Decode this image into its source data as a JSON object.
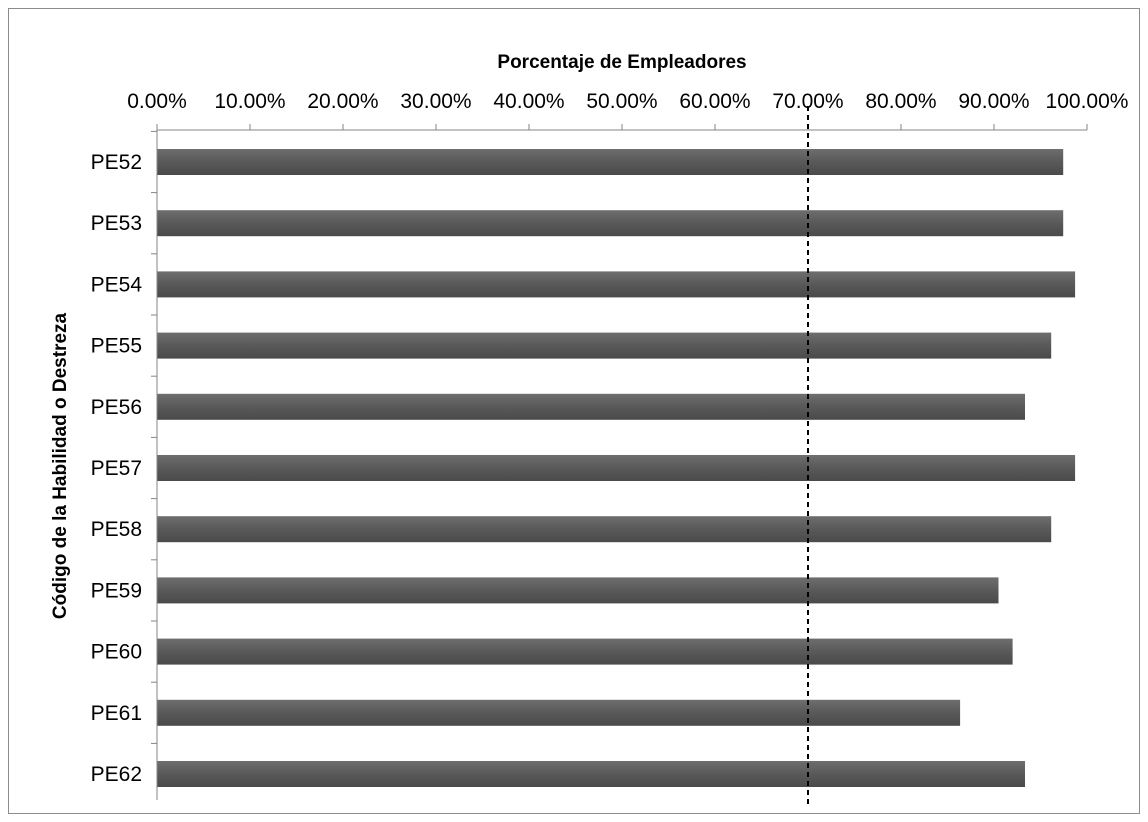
{
  "chart_data": {
    "type": "bar",
    "orientation": "horizontal",
    "categories": [
      "PE52",
      "PE53",
      "PE54",
      "PE55",
      "PE56",
      "PE57",
      "PE58",
      "PE59",
      "PE60",
      "PE61",
      "PE62"
    ],
    "values": [
      0.9744,
      0.9744,
      0.9872,
      0.9615,
      0.9333,
      0.9872,
      0.9615,
      0.9048,
      0.92,
      0.8636,
      0.9333
    ],
    "xlabel": "Porcentaje de Empleadores",
    "ylabel": "Código de la Habilidad o Destreza",
    "xlim": [
      0,
      1.0
    ],
    "x_ticks": [
      "0.00%",
      "10.00%",
      "20.00%",
      "30.00%",
      "40.00%",
      "50.00%",
      "60.00%",
      "70.00%",
      "80.00%",
      "90.00%",
      "100.00%"
    ],
    "x_axis_position": "top",
    "reference_line": 0.7,
    "grid": false,
    "bar_color": "#595959"
  }
}
